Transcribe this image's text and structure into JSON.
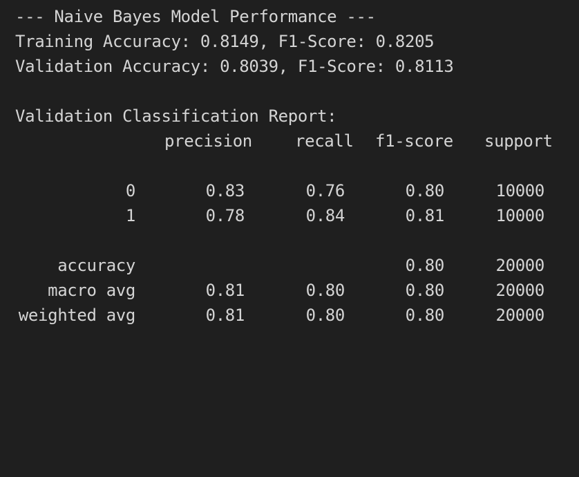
{
  "header_line": "--- Naive Bayes Model Performance ---",
  "training_line": "Training Accuracy: 0.8149, F1-Score: 0.8205",
  "validation_line": "Validation Accuracy: 0.8039, F1-Score: 0.8113",
  "report_title": "Validation Classification Report:",
  "columns": {
    "precision": "precision",
    "recall": "recall",
    "f1": "f1-score",
    "support": "support"
  },
  "class_rows": [
    {
      "label": "0",
      "precision": "0.83",
      "recall": "0.76",
      "f1": "0.80",
      "support": "10000"
    },
    {
      "label": "1",
      "precision": "0.78",
      "recall": "0.84",
      "f1": "0.81",
      "support": "10000"
    }
  ],
  "summary_rows": [
    {
      "label": "accuracy",
      "precision": "",
      "recall": "",
      "f1": "0.80",
      "support": "20000"
    },
    {
      "label": "macro avg",
      "precision": "0.81",
      "recall": "0.80",
      "f1": "0.80",
      "support": "20000"
    },
    {
      "label": "weighted avg",
      "precision": "0.81",
      "recall": "0.80",
      "f1": "0.80",
      "support": "20000"
    }
  ]
}
